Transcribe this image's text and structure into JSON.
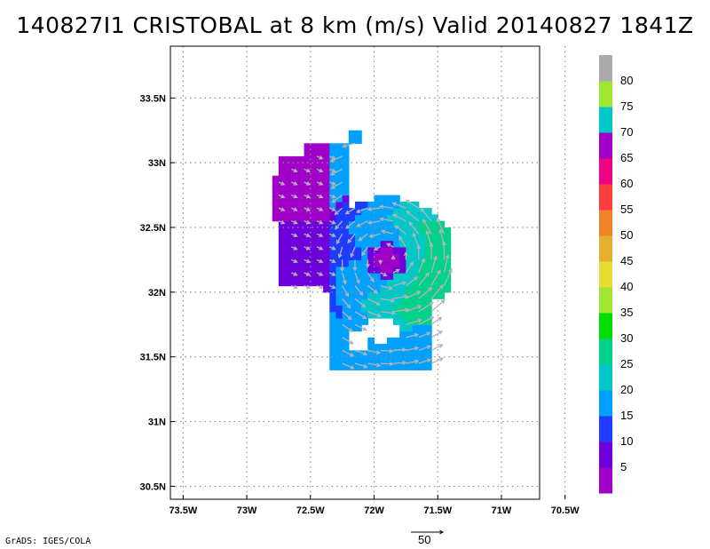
{
  "title": "140827I1 CRISTOBAL at 8 km (m/s) Valid 20140827 1841Z",
  "footer": "GrADS: IGES/COLA",
  "reference_vector": {
    "label": "50",
    "magnitude": 50
  },
  "map": {
    "x_ticks": [
      {
        "value": -73.5,
        "label": "73.5W"
      },
      {
        "value": -73.0,
        "label": "73W"
      },
      {
        "value": -72.5,
        "label": "72.5W"
      },
      {
        "value": -72.0,
        "label": "72W"
      },
      {
        "value": -71.5,
        "label": "71.5W"
      },
      {
        "value": -71.0,
        "label": "71W"
      },
      {
        "value": -70.5,
        "label": "70.5W"
      }
    ],
    "y_ticks": [
      {
        "value": 30.5,
        "label": "30.5N"
      },
      {
        "value": 31.0,
        "label": "31N"
      },
      {
        "value": 31.5,
        "label": "31.5N"
      },
      {
        "value": 32.0,
        "label": "32N"
      },
      {
        "value": 32.5,
        "label": "32.5N"
      },
      {
        "value": 33.0,
        "label": "33N"
      },
      {
        "value": 33.5,
        "label": "33.5N"
      }
    ],
    "lon_range": [
      -73.6,
      -70.7
    ],
    "lat_range": [
      30.4,
      33.9
    ],
    "grid": "dotted",
    "storm_center": {
      "lon": -71.9,
      "lat": 32.25
    }
  },
  "colorbar": {
    "colors": [
      "#a000c8",
      "#6e00dc",
      "#1e3cff",
      "#00a0ff",
      "#00c8c8",
      "#00d28c",
      "#00dc00",
      "#a0e632",
      "#e6dc32",
      "#e6af2d",
      "#f08228",
      "#fa3c3c",
      "#f00082",
      "#a000c8",
      "#00c8c8",
      "#a0e632",
      "#aaaaaa"
    ],
    "labels": [
      "5",
      "10",
      "15",
      "20",
      "25",
      "30",
      "35",
      "40",
      "45",
      "50",
      "55",
      "60",
      "65",
      "70",
      "75",
      "80"
    ],
    "units": "m/s"
  },
  "colors": {
    "frame": "#000000",
    "grid": "#909090",
    "vector": "#b4b4b4"
  }
}
